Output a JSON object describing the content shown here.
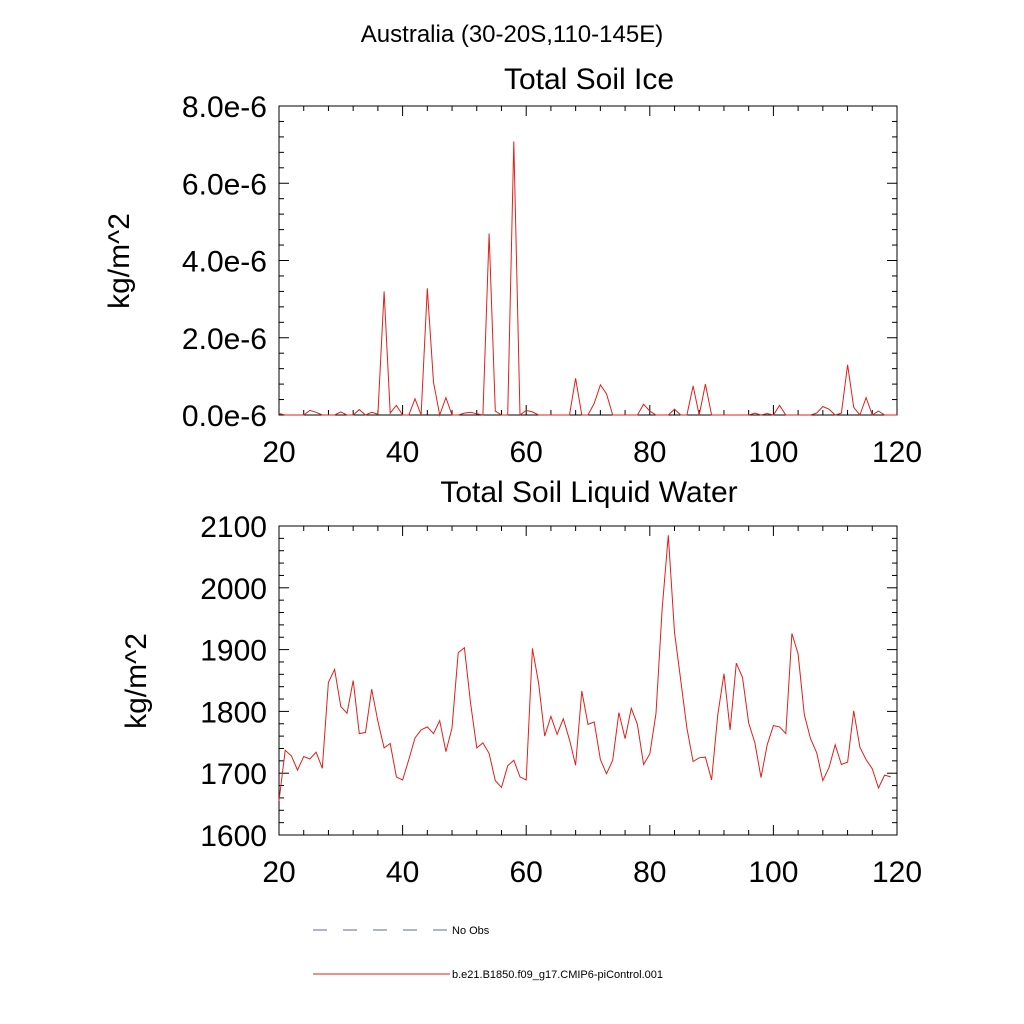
{
  "figure_title": "Australia (30-20S,110-145E)",
  "legend": {
    "items": [
      {
        "label": "No Obs",
        "style": "dashed",
        "color": "#5b6b9a"
      },
      {
        "label": "b.e21.B1850.f09_g17.CMIP6-piControl.001",
        "style": "solid",
        "color": "#e0201a"
      }
    ]
  },
  "chart_data": [
    {
      "type": "line",
      "title": "Total Soil Ice",
      "xlabel": "",
      "ylabel": "kg/m^2",
      "xlim": [
        20,
        120
      ],
      "ylim": [
        0,
        8e-06
      ],
      "xticks": [
        20,
        40,
        60,
        80,
        100,
        120
      ],
      "xtick_labels": [
        "20",
        "40",
        "60",
        "80",
        "100",
        "120"
      ],
      "yticks": [
        0,
        2e-06,
        4e-06,
        6e-06,
        8e-06
      ],
      "ytick_labels": [
        "0.0e-6",
        "2.0e-6",
        "4.0e-6",
        "6.0e-6",
        "8.0e-6"
      ],
      "grid": false,
      "series": [
        {
          "name": "b.e21.B1850.f09_g17.CMIP6-piControl.001",
          "color": "#e0201a",
          "x": [
            20,
            21,
            22,
            23,
            24,
            25,
            26,
            27,
            28,
            29,
            30,
            31,
            32,
            33,
            34,
            35,
            36,
            37,
            38,
            39,
            40,
            41,
            42,
            43,
            44,
            45,
            46,
            47,
            48,
            49,
            50,
            51,
            52,
            53,
            54,
            55,
            56,
            57,
            58,
            59,
            60,
            61,
            62,
            63,
            64,
            65,
            66,
            67,
            68,
            69,
            70,
            71,
            72,
            73,
            74,
            75,
            76,
            77,
            78,
            79,
            80,
            81,
            82,
            83,
            84,
            85,
            86,
            87,
            88,
            89,
            90,
            91,
            92,
            93,
            94,
            95,
            96,
            97,
            98,
            99,
            100,
            101,
            102,
            103,
            104,
            105,
            106,
            107,
            108,
            109,
            110,
            111,
            112,
            113,
            114,
            115,
            116,
            117,
            118,
            119,
            120
          ],
          "y": [
            4e-08,
            0,
            0,
            0,
            0,
            1.2e-07,
            7e-08,
            0,
            0,
            0,
            8e-08,
            0,
            0,
            1.4e-07,
            0,
            7e-08,
            2e-08,
            3.2e-06,
            5e-08,
            2.5e-07,
            0,
            0,
            4.2e-07,
            0,
            3.28e-06,
            8.5e-07,
            0,
            4.5e-07,
            0,
            0,
            5e-08,
            7e-08,
            3e-08,
            0,
            4.7e-06,
            1e-07,
            0,
            0,
            7.08e-06,
            0,
            1.2e-07,
            8e-08,
            0,
            0,
            0,
            0,
            0,
            0,
            9.5e-07,
            0,
            0,
            3e-07,
            7.8e-07,
            5.5e-07,
            0,
            0,
            0,
            0,
            0,
            2.8e-07,
            1e-07,
            0,
            0,
            0,
            1.5e-07,
            0,
            0,
            7.5e-07,
            0,
            8e-07,
            0,
            0,
            0,
            0,
            0,
            0,
            0,
            5e-08,
            0,
            4e-08,
            0,
            2.5e-07,
            0,
            0,
            0,
            0,
            0,
            5e-08,
            2.2e-07,
            1.5e-07,
            0,
            5e-08,
            1.3e-06,
            2e-07,
            0,
            4.5e-07,
            0,
            1e-07,
            0,
            0,
            0
          ]
        }
      ]
    },
    {
      "type": "line",
      "title": "Total Soil Liquid Water",
      "xlabel": "",
      "ylabel": "kg/m^2",
      "xlim": [
        20,
        120
      ],
      "ylim": [
        1600,
        2100
      ],
      "xticks": [
        20,
        40,
        60,
        80,
        100,
        120
      ],
      "xtick_labels": [
        "20",
        "40",
        "60",
        "80",
        "100",
        "120"
      ],
      "yticks": [
        1600,
        1700,
        1800,
        1900,
        2000,
        2100
      ],
      "ytick_labels": [
        "1600",
        "1700",
        "1800",
        "1900",
        "2000",
        "2100"
      ],
      "grid": false,
      "series": [
        {
          "name": "b.e21.B1850.f09_g17.CMIP6-piControl.001",
          "color": "#e0201a",
          "x": [
            20,
            21,
            22,
            23,
            24,
            25,
            26,
            27,
            28,
            29,
            30,
            31,
            32,
            33,
            34,
            35,
            36,
            37,
            38,
            39,
            40,
            41,
            42,
            43,
            44,
            45,
            46,
            47,
            48,
            49,
            50,
            51,
            52,
            53,
            54,
            55,
            56,
            57,
            58,
            59,
            60,
            61,
            62,
            63,
            64,
            65,
            66,
            67,
            68,
            69,
            70,
            71,
            72,
            73,
            74,
            75,
            76,
            77,
            78,
            79,
            80,
            81,
            82,
            83,
            84,
            85,
            86,
            87,
            88,
            89,
            90,
            91,
            92,
            93,
            94,
            95,
            96,
            97,
            98,
            99,
            100,
            101,
            102,
            103,
            104,
            105,
            106,
            107,
            108,
            109,
            110,
            111,
            112,
            113,
            114,
            115,
            116,
            117,
            118,
            119
          ],
          "y": [
            1655,
            1737,
            1728,
            1705,
            1727,
            1723,
            1734,
            1708,
            1847,
            1868,
            1808,
            1797,
            1850,
            1764,
            1766,
            1836,
            1784,
            1741,
            1748,
            1694,
            1689,
            1722,
            1757,
            1770,
            1775,
            1764,
            1785,
            1735,
            1773,
            1895,
            1903,
            1813,
            1741,
            1749,
            1732,
            1688,
            1677,
            1712,
            1721,
            1694,
            1689,
            1902,
            1846,
            1760,
            1792,
            1763,
            1788,
            1754,
            1713,
            1833,
            1779,
            1783,
            1722,
            1699,
            1721,
            1798,
            1756,
            1805,
            1779,
            1714,
            1731,
            1797,
            1967,
            2085,
            1928,
            1851,
            1773,
            1719,
            1725,
            1726,
            1689,
            1795,
            1861,
            1770,
            1878,
            1855,
            1781,
            1749,
            1693,
            1746,
            1777,
            1775,
            1764,
            1926,
            1893,
            1795,
            1756,
            1733,
            1688,
            1709,
            1746,
            1714,
            1718,
            1801,
            1742,
            1722,
            1707,
            1676,
            1697,
            1694
          ]
        }
      ]
    }
  ]
}
